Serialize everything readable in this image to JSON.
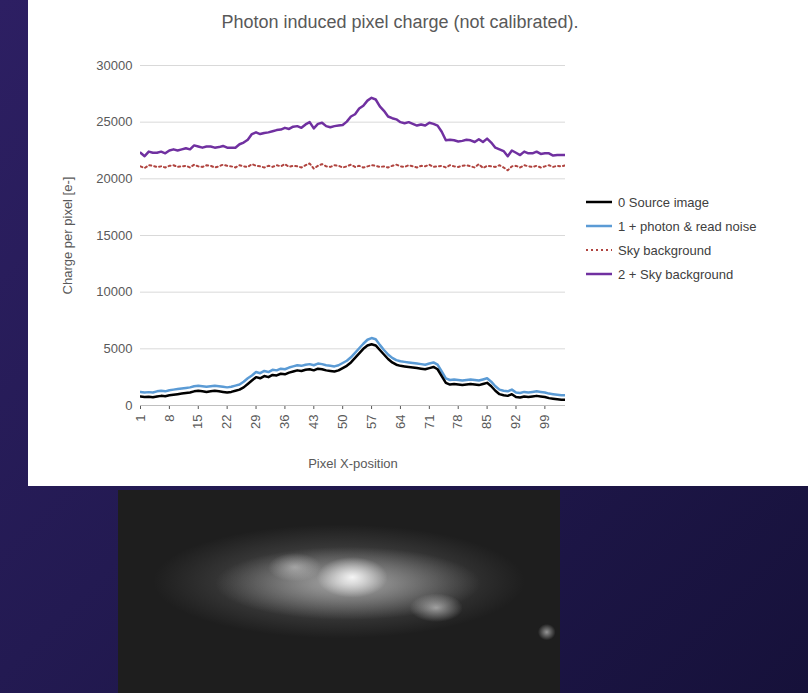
{
  "chart_data": {
    "type": "line",
    "title": "Photon induced pixel charge (not calibrated).",
    "x_label": "Pixel X-position",
    "y_label": "Charge per pixel [e-]",
    "x": [
      1,
      2,
      3,
      4,
      5,
      6,
      7,
      8,
      9,
      10,
      11,
      12,
      13,
      14,
      15,
      16,
      17,
      18,
      19,
      20,
      21,
      22,
      23,
      24,
      25,
      26,
      27,
      28,
      29,
      30,
      31,
      32,
      33,
      34,
      35,
      36,
      37,
      38,
      39,
      40,
      41,
      42,
      43,
      44,
      45,
      46,
      47,
      48,
      49,
      50,
      51,
      52,
      53,
      54,
      55,
      56,
      57,
      58,
      59,
      60,
      61,
      62,
      63,
      64,
      65,
      66,
      67,
      68,
      69,
      70,
      71,
      72,
      73,
      74,
      75,
      76,
      77,
      78,
      79,
      80,
      81,
      82,
      83,
      84,
      85,
      86,
      87,
      88,
      89,
      90,
      91,
      92,
      93,
      94,
      95,
      96,
      97,
      98,
      99,
      100,
      101,
      102,
      103,
      104
    ],
    "xlim": [
      1,
      104
    ],
    "xticks": [
      1,
      8,
      15,
      22,
      29,
      36,
      43,
      50,
      57,
      64,
      71,
      78,
      85,
      92,
      99
    ],
    "ylim": [
      0,
      30000
    ],
    "yticks": [
      0,
      5000,
      10000,
      15000,
      20000,
      25000,
      30000
    ],
    "grid": true,
    "legend": "right",
    "series": [
      {
        "name": "0 Source image",
        "color": "#000000",
        "line_style": "solid",
        "values": [
          800,
          750,
          780,
          720,
          800,
          850,
          820,
          900,
          950,
          1000,
          1050,
          1100,
          1150,
          1250,
          1300,
          1250,
          1200,
          1250,
          1300,
          1250,
          1200,
          1150,
          1200,
          1300,
          1400,
          1600,
          1900,
          2200,
          2500,
          2400,
          2600,
          2500,
          2700,
          2650,
          2800,
          2750,
          2900,
          3000,
          3100,
          3050,
          3150,
          3200,
          3100,
          3250,
          3200,
          3100,
          3050,
          3000,
          3100,
          3300,
          3500,
          3800,
          4200,
          4600,
          5000,
          5300,
          5400,
          5300,
          4900,
          4500,
          4100,
          3800,
          3600,
          3500,
          3450,
          3400,
          3350,
          3300,
          3250,
          3200,
          3300,
          3400,
          3200,
          2600,
          2000,
          1850,
          1900,
          1850,
          1800,
          1850,
          1900,
          1850,
          1800,
          1900,
          2000,
          1700,
          1300,
          1000,
          900,
          850,
          1000,
          750,
          700,
          800,
          750,
          800,
          850,
          800,
          750,
          650,
          600,
          550,
          500,
          500
        ]
      },
      {
        "name": "1 + photon & read noise",
        "color": "#5b9bd5",
        "line_style": "solid",
        "values": [
          1200,
          1150,
          1180,
          1150,
          1250,
          1300,
          1250,
          1350,
          1400,
          1450,
          1500,
          1550,
          1600,
          1700,
          1750,
          1700,
          1650,
          1700,
          1750,
          1700,
          1650,
          1600,
          1650,
          1750,
          1850,
          2100,
          2400,
          2650,
          2950,
          2850,
          3050,
          2950,
          3150,
          3100,
          3250,
          3200,
          3350,
          3450,
          3550,
          3500,
          3600,
          3650,
          3550,
          3700,
          3650,
          3550,
          3500,
          3450,
          3550,
          3750,
          3950,
          4250,
          4650,
          5050,
          5450,
          5800,
          5950,
          5850,
          5350,
          4900,
          4500,
          4200,
          4000,
          3900,
          3850,
          3800,
          3750,
          3700,
          3650,
          3600,
          3700,
          3800,
          3600,
          3000,
          2400,
          2250,
          2300,
          2250,
          2200,
          2250,
          2300,
          2250,
          2200,
          2300,
          2400,
          2100,
          1700,
          1400,
          1300,
          1250,
          1400,
          1150,
          1100,
          1200,
          1150,
          1200,
          1250,
          1200,
          1150,
          1050,
          1000,
          950,
          900,
          900
        ]
      },
      {
        "name": "Sky background",
        "color": "#b0443f",
        "line_style": "dotted",
        "values": [
          21100,
          20950,
          21200,
          21150,
          21050,
          21100,
          21000,
          21150,
          21200,
          21050,
          21100,
          21150,
          21000,
          21250,
          21100,
          21050,
          21200,
          21150,
          21000,
          21100,
          21250,
          21150,
          21100,
          21000,
          21200,
          21100,
          21050,
          21300,
          21150,
          21100,
          21000,
          21150,
          21050,
          21200,
          21100,
          21300,
          21050,
          21150,
          21100,
          21000,
          21200,
          21350,
          20900,
          21150,
          21300,
          21100,
          21050,
          21200,
          21150,
          21000,
          21100,
          21250,
          21050,
          21150,
          21000,
          21100,
          21200,
          21150,
          21050,
          21100,
          21000,
          21150,
          21250,
          21100,
          21050,
          21200,
          21100,
          21000,
          21150,
          21100,
          21250,
          21050,
          21100,
          21150,
          21000,
          21200,
          21100,
          21050,
          21150,
          21200,
          21100,
          21000,
          21300,
          20950,
          21150,
          21100,
          21050,
          21200,
          21000,
          20750,
          21100,
          21150,
          21000,
          21200,
          21100,
          21050,
          21150,
          21000,
          21100,
          21200,
          21050,
          21150,
          21100,
          21200
        ]
      },
      {
        "name": "2 + Sky background",
        "color": "#7030a0",
        "line_style": "solid",
        "values": [
          22300,
          22000,
          22400,
          22300,
          22300,
          22400,
          22250,
          22500,
          22600,
          22500,
          22600,
          22700,
          22600,
          22950,
          22850,
          22750,
          22850,
          22850,
          22750,
          22800,
          22900,
          22750,
          22750,
          22750,
          23050,
          23200,
          23450,
          23950,
          24100,
          23950,
          24050,
          24100,
          24200,
          24300,
          24350,
          24500,
          24400,
          24600,
          24650,
          24500,
          24800,
          25000,
          24450,
          24850,
          24950,
          24650,
          24550,
          24650,
          24700,
          24750,
          25050,
          25500,
          25700,
          26200,
          26450,
          26900,
          27150,
          27000,
          26400,
          26000,
          25500,
          25350,
          25250,
          25000,
          24900,
          25000,
          24850,
          24700,
          24800,
          24700,
          24950,
          24850,
          24700,
          24150,
          23400,
          23450,
          23400,
          23300,
          23350,
          23450,
          23400,
          23250,
          23500,
          23250,
          23550,
          23200,
          22750,
          22600,
          22450,
          22000,
          22500,
          22300,
          22100,
          22400,
          22250,
          22250,
          22400,
          22200,
          22250,
          22250,
          22050,
          22100,
          22100,
          22100
        ]
      }
    ]
  }
}
